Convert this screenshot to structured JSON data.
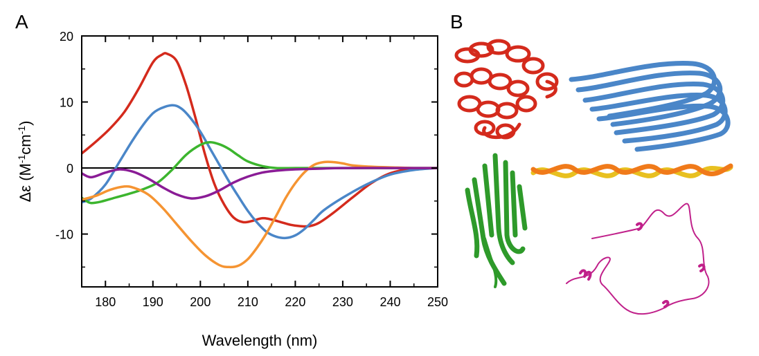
{
  "panels": {
    "a_label": "A",
    "b_label": "B"
  },
  "colors": {
    "red": "#d42a1c",
    "blue": "#4a86c8",
    "green": "#3cb52e",
    "orange": "#f59432",
    "purple": "#8a1c96",
    "magenta": "#c0208a",
    "zero_line": "#000000"
  },
  "structures": [
    {
      "name": "alpha-helical protein",
      "color": "red"
    },
    {
      "name": "beta-sheet fibril",
      "color": "blue"
    },
    {
      "name": "beta-sandwich protein",
      "color": "green"
    },
    {
      "name": "polyproline/triple-helix fiber",
      "color": "orange"
    },
    {
      "name": "disordered chain",
      "color": "magenta"
    }
  ],
  "chart_data": {
    "type": "line",
    "title": "",
    "xlabel": "Wavelength (nm)",
    "ylabel_parts": {
      "prefix": "Δε (M",
      "exp1": "-1",
      "mid": "cm",
      "exp2": "-1",
      "suffix": ")"
    },
    "xlim": [
      175,
      250
    ],
    "ylim": [
      -18,
      20
    ],
    "xticks": [
      180,
      190,
      200,
      210,
      220,
      230,
      240,
      250
    ],
    "yticks": [
      -10,
      0,
      10,
      20
    ],
    "ytick_labels": [
      "-10",
      "0",
      "10",
      "20"
    ],
    "xtick_labels": [
      "180",
      "190",
      "200",
      "210",
      "220",
      "230",
      "240",
      "250"
    ],
    "zero_line": true,
    "series": [
      {
        "name": "red",
        "color": "#d42a1c",
        "x": [
          175,
          178,
          181,
          184,
          187,
          190,
          192,
          193,
          195,
          197,
          199,
          201,
          203,
          205,
          207,
          209,
          211,
          213,
          215,
          217,
          219,
          221,
          223,
          225,
          228,
          232,
          236,
          240,
          244,
          250
        ],
        "y": [
          2.2,
          4,
          6,
          8.5,
          12,
          16,
          17.2,
          17.3,
          16.2,
          12.5,
          7.5,
          2,
          -2.5,
          -5.5,
          -7.5,
          -8.2,
          -8,
          -7.6,
          -7.8,
          -8.2,
          -8.6,
          -8.8,
          -8.8,
          -8.3,
          -6.8,
          -4.5,
          -2.3,
          -0.8,
          -0.2,
          0
        ]
      },
      {
        "name": "blue",
        "color": "#4a86c8",
        "x": [
          175,
          177,
          180,
          183,
          186,
          189,
          191,
          194,
          196,
          198,
          200,
          202,
          204,
          206,
          208,
          210,
          212,
          214,
          216,
          218,
          220,
          222,
          224,
          226,
          230,
          235,
          240,
          245,
          250
        ],
        "y": [
          -5.2,
          -4.6,
          -2.5,
          1,
          4.5,
          7.5,
          8.8,
          9.5,
          9,
          7.5,
          5.5,
          3,
          0.5,
          -2,
          -4.3,
          -6.5,
          -8.3,
          -9.7,
          -10.4,
          -10.6,
          -10.2,
          -9.2,
          -7.8,
          -6.4,
          -4.5,
          -2.5,
          -1,
          -0.3,
          0
        ]
      },
      {
        "name": "green",
        "color": "#3cb52e",
        "x": [
          175,
          176,
          177,
          179,
          182,
          185,
          188,
          191,
          194,
          197,
          200,
          202,
          204,
          206,
          208,
          210,
          213,
          216,
          220,
          225,
          230,
          240,
          250
        ],
        "y": [
          -4.5,
          -5,
          -5.3,
          -5.1,
          -4.5,
          -3.9,
          -3.2,
          -2.2,
          -0.3,
          2,
          3.5,
          3.9,
          3.6,
          2.9,
          1.9,
          1,
          0.3,
          0,
          0,
          0,
          0,
          0,
          0
        ]
      },
      {
        "name": "orange",
        "color": "#f59432",
        "x": [
          175,
          178,
          181,
          184,
          186,
          189,
          192,
          195,
          198,
          201,
          204,
          206,
          208,
          210,
          212,
          214,
          216,
          218,
          220,
          222,
          224,
          226,
          228,
          230,
          232,
          236,
          240,
          245,
          250
        ],
        "y": [
          -4.8,
          -4.2,
          -3.3,
          -2.8,
          -3,
          -4,
          -6,
          -8.5,
          -11,
          -13.2,
          -14.7,
          -15,
          -14.8,
          -13.8,
          -12,
          -9.8,
          -7.2,
          -4.5,
          -2.3,
          -0.6,
          0.5,
          0.9,
          0.9,
          0.7,
          0.4,
          0.2,
          0.1,
          0,
          0
        ]
      },
      {
        "name": "purple",
        "color": "#8a1c96",
        "x": [
          175,
          177,
          180,
          183,
          186,
          189,
          192,
          195,
          198,
          201,
          204,
          207,
          210,
          213,
          216,
          220,
          225,
          230,
          240,
          250
        ],
        "y": [
          -0.8,
          -1.4,
          -0.7,
          -0.2,
          -0.6,
          -1.6,
          -2.9,
          -4,
          -4.6,
          -4.3,
          -3.4,
          -2.2,
          -1.3,
          -0.7,
          -0.4,
          -0.2,
          -0.1,
          0,
          0,
          0
        ]
      }
    ]
  }
}
